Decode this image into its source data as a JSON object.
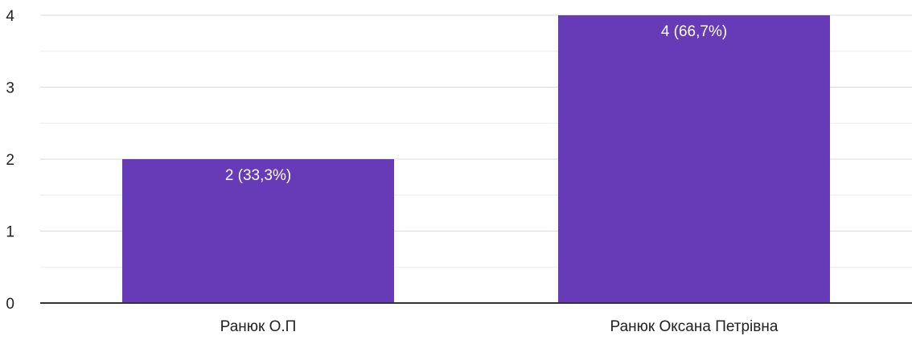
{
  "chart_data": {
    "type": "bar",
    "categories": [
      "Ранюк О.П",
      "Ранюк Оксана Петрівна"
    ],
    "values": [
      2,
      4
    ],
    "data_labels": [
      "2 (33,3%)",
      "4 (66,7%)"
    ],
    "y_ticks": [
      "0",
      "1",
      "2",
      "3",
      "4"
    ],
    "ylim": [
      0,
      4
    ],
    "grid": true,
    "minor_grid": true,
    "colors": {
      "bar": "#673ab7",
      "bar_label": "#ffffff",
      "grid_major": "#d9d9d9",
      "grid_minor": "#ececec",
      "axis": "#333333",
      "text": "#222222"
    }
  }
}
